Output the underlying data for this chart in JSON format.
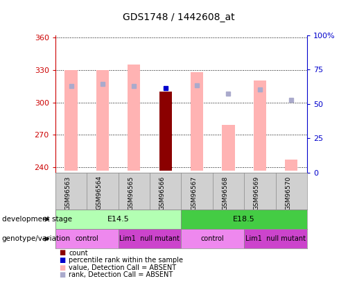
{
  "title": "GDS1748 / 1442608_at",
  "samples": [
    "GSM96563",
    "GSM96564",
    "GSM96565",
    "GSM96566",
    "GSM96567",
    "GSM96568",
    "GSM96569",
    "GSM96570"
  ],
  "ylim_left": [
    235,
    362
  ],
  "ylim_right": [
    0,
    100
  ],
  "yticks_left": [
    240,
    270,
    300,
    330,
    360
  ],
  "yticks_right": [
    0,
    25,
    50,
    75,
    100
  ],
  "value_bars": [
    330,
    330,
    335,
    null,
    328,
    279,
    320,
    247
  ],
  "value_bar_color": "#ffb3b3",
  "rank_dots": [
    315,
    317,
    315,
    null,
    316,
    308,
    312,
    302
  ],
  "rank_dot_color": "#aaaacc",
  "count_bar": [
    null,
    null,
    null,
    310,
    null,
    null,
    null,
    null
  ],
  "count_bar_color": "#8b0000",
  "percentile_dot": [
    null,
    null,
    null,
    313,
    null,
    null,
    null,
    null
  ],
  "percentile_dot_color": "#0000cc",
  "bar_bottom": 237,
  "dev_stage_row": [
    {
      "label": "E14.5",
      "start": 0,
      "end": 3,
      "color": "#b3ffb3"
    },
    {
      "label": "E18.5",
      "start": 4,
      "end": 7,
      "color": "#44cc44"
    }
  ],
  "genotype_row": [
    {
      "label": "control",
      "start": 0,
      "end": 1,
      "color": "#ee88ee"
    },
    {
      "label": "Lim1  null mutant",
      "start": 2,
      "end": 3,
      "color": "#cc44cc"
    },
    {
      "label": "control",
      "start": 4,
      "end": 5,
      "color": "#ee88ee"
    },
    {
      "label": "Lim1  null mutant",
      "start": 6,
      "end": 7,
      "color": "#cc44cc"
    }
  ],
  "legend_items": [
    {
      "color": "#8b0000",
      "label": "count"
    },
    {
      "color": "#0000cc",
      "label": "percentile rank within the sample"
    },
    {
      "color": "#ffb3b3",
      "label": "value, Detection Call = ABSENT"
    },
    {
      "color": "#aaaacc",
      "label": "rank, Detection Call = ABSENT"
    }
  ],
  "left_axis_color": "#cc0000",
  "right_axis_color": "#0000cc",
  "label_dev": "development stage",
  "label_geno": "genotype/variation"
}
